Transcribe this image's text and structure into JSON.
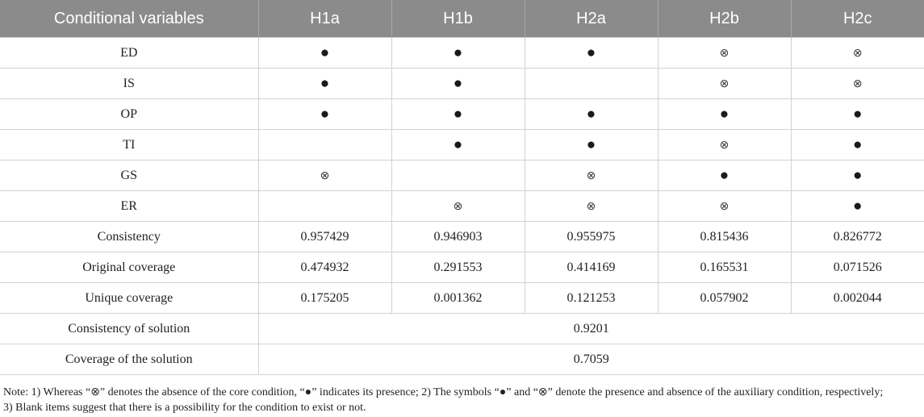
{
  "table": {
    "headers": [
      "Conditional variables",
      "H1a",
      "H1b",
      "H2a",
      "H2b",
      "H2c"
    ],
    "condition_rows": [
      {
        "label": "ED",
        "cells": [
          "●",
          "●",
          "●",
          "⊗",
          "⊗"
        ]
      },
      {
        "label": "IS",
        "cells": [
          "●",
          "●",
          "",
          "⊗",
          "⊗"
        ]
      },
      {
        "label": "OP",
        "cells": [
          "●",
          "●",
          "●",
          "●",
          "●"
        ]
      },
      {
        "label": "TI",
        "cells": [
          "",
          "●",
          "●",
          "⊗",
          "●"
        ]
      },
      {
        "label": "GS",
        "cells": [
          "⊗",
          "",
          "⊗",
          "●",
          "●"
        ]
      },
      {
        "label": "ER",
        "cells": [
          "",
          "⊗",
          "⊗",
          "⊗",
          "●"
        ]
      }
    ],
    "metric_rows": [
      {
        "label": "Consistency",
        "cells": [
          "0.957429",
          "0.946903",
          "0.955975",
          "0.815436",
          "0.826772"
        ]
      },
      {
        "label": "Original coverage",
        "cells": [
          "0.474932",
          "0.291553",
          "0.414169",
          "0.165531",
          "0.071526"
        ]
      },
      {
        "label": "Unique coverage",
        "cells": [
          "0.175205",
          "0.001362",
          "0.121253",
          "0.057902",
          "0.002044"
        ]
      }
    ],
    "solution_rows": [
      {
        "label": "Consistency of solution",
        "value": "0.9201"
      },
      {
        "label": "Coverage of the solution",
        "value": "0.7059"
      }
    ]
  },
  "note": {
    "line1": "Note: 1) Whereas “⊗” denotes the absence of the core condition, “●” indicates its presence; 2) The symbols “●” and “⊗” denote the presence and absence of the auxiliary condition, respectively;",
    "line2": "3) Blank items suggest that there is a possibility for the condition to exist or not."
  }
}
